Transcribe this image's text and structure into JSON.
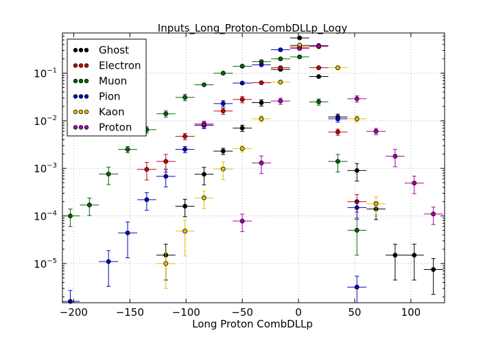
{
  "chart_data": {
    "type": "scatter",
    "title": "Inputs_Long_Proton-CombDLLp_Logy",
    "xlabel": "Long Proton CombDLLp",
    "ylabel": "",
    "xlim": [
      -210,
      130
    ],
    "ylim": [
      1.5e-06,
      0.7
    ],
    "yscale": "log",
    "grid": true,
    "legend_position": "top-left",
    "xticks": [
      -200,
      -150,
      -100,
      -50,
      0,
      50,
      100
    ],
    "yticks": [
      {
        "value": 1e-05,
        "base": "10",
        "exp": "-5"
      },
      {
        "value": 0.0001,
        "base": "10",
        "exp": "-4"
      },
      {
        "value": 0.001,
        "base": "10",
        "exp": "-3"
      },
      {
        "value": 0.01,
        "base": "10",
        "exp": "-2"
      },
      {
        "value": 0.1,
        "base": "10",
        "exp": "-1"
      }
    ],
    "series": [
      {
        "name": "Ghost",
        "color": "#000000",
        "points": [
          [
            -118,
            1.5e-05
          ],
          [
            -101,
            0.00016
          ],
          [
            -84,
            0.00075
          ],
          [
            -67,
            0.0023
          ],
          [
            -50,
            0.007
          ],
          [
            -33,
            0.024
          ],
          [
            -16,
            0.12
          ],
          [
            1,
            0.55
          ],
          [
            18,
            0.085
          ],
          [
            35,
            0.012
          ],
          [
            52,
            0.0009
          ],
          [
            69,
            0.00014
          ],
          [
            86,
            1.5e-05
          ],
          [
            103,
            1.5e-05
          ],
          [
            120,
            7.5e-06
          ]
        ]
      },
      {
        "name": "Electron",
        "color": "#cc0000",
        "points": [
          [
            -135,
            0.00095
          ],
          [
            -118,
            0.0014
          ],
          [
            -101,
            0.0047
          ],
          [
            -84,
            0.0085
          ],
          [
            -67,
            0.016
          ],
          [
            -50,
            0.028
          ],
          [
            -33,
            0.063
          ],
          [
            -16,
            0.13
          ],
          [
            1,
            0.35
          ],
          [
            18,
            0.13
          ],
          [
            35,
            0.0058
          ],
          [
            52,
            0.0002
          ]
        ]
      },
      {
        "name": "Muon",
        "color": "#006600",
        "points": [
          [
            -203,
            0.0001
          ],
          [
            -186,
            0.00017
          ],
          [
            -169,
            0.00076
          ],
          [
            -152,
            0.0025
          ],
          [
            -135,
            0.0065
          ],
          [
            -118,
            0.014
          ],
          [
            -101,
            0.031
          ],
          [
            -84,
            0.057
          ],
          [
            -67,
            0.1
          ],
          [
            -50,
            0.14
          ],
          [
            -33,
            0.175
          ],
          [
            -16,
            0.2
          ],
          [
            1,
            0.22
          ],
          [
            18,
            0.025
          ],
          [
            35,
            0.0014
          ],
          [
            52,
            5e-05
          ]
        ]
      },
      {
        "name": "Pion",
        "color": "#0000cc",
        "points": [
          [
            -203,
            1.6e-06
          ],
          [
            -169,
            1.1e-05
          ],
          [
            -152,
            4.4e-05
          ],
          [
            -135,
            0.00022
          ],
          [
            -118,
            0.00068
          ],
          [
            -101,
            0.0025
          ],
          [
            -84,
            0.008
          ],
          [
            -67,
            0.023
          ],
          [
            -50,
            0.062
          ],
          [
            -33,
            0.15
          ],
          [
            -16,
            0.31
          ],
          [
            1,
            0.38
          ],
          [
            18,
            0.38
          ],
          [
            35,
            0.011
          ],
          [
            52,
            0.00015
          ],
          [
            52,
            3.2e-06
          ]
        ]
      },
      {
        "name": "Kaon",
        "color": "#e6c200",
        "points": [
          [
            -118,
            1e-05
          ],
          [
            -101,
            4.8e-05
          ],
          [
            -84,
            0.00024
          ],
          [
            -67,
            0.00097
          ],
          [
            -50,
            0.0026
          ],
          [
            -33,
            0.011
          ],
          [
            -16,
            0.065
          ],
          [
            1,
            0.39
          ],
          [
            18,
            0.36
          ],
          [
            35,
            0.13
          ],
          [
            52,
            0.011
          ],
          [
            69,
            0.00018
          ]
        ]
      },
      {
        "name": "Proton",
        "color": "#aa00aa",
        "points": [
          [
            -84,
            0.0085
          ],
          [
            -50,
            7.8e-05
          ],
          [
            -33,
            0.0013
          ],
          [
            -16,
            0.026
          ],
          [
            1,
            0.33
          ],
          [
            18,
            0.37
          ],
          [
            52,
            0.029
          ],
          [
            69,
            0.006
          ],
          [
            86,
            0.0018
          ],
          [
            103,
            0.00049
          ],
          [
            120,
            0.00011
          ]
        ]
      }
    ]
  }
}
